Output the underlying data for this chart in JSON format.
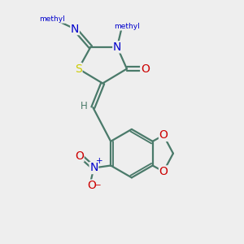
{
  "bg_color": "#eeeeee",
  "bond_color": "#4a7a6a",
  "bond_width": 1.6,
  "atom_colors": {
    "S": "#cccc00",
    "N": "#0000cc",
    "O": "#cc0000",
    "C": "#4a7a6a",
    "H": "#4a7a6a"
  },
  "font_size_atom": 10,
  "font_size_small": 8.5,
  "font_size_methyl": 8
}
